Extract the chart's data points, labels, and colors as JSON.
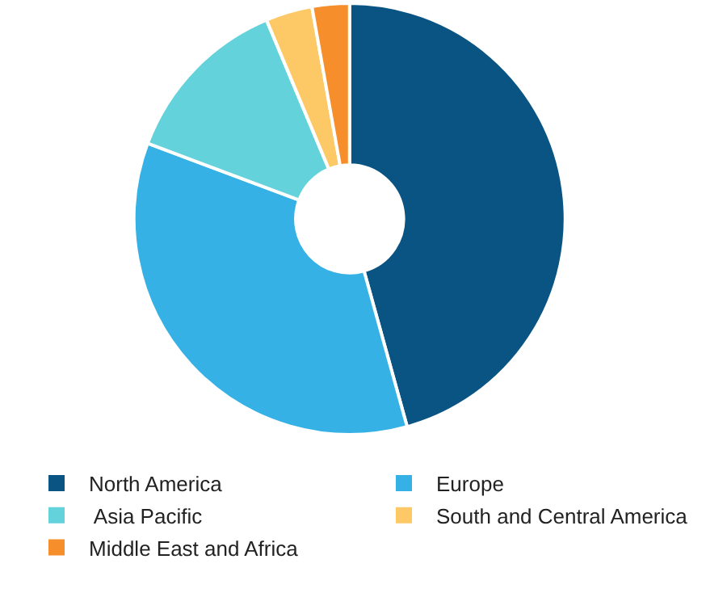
{
  "chart_data": {
    "type": "donut",
    "categories": [
      "North America",
      "Europe",
      " Asia Pacific",
      "South and Central America",
      "Middle East and Africa"
    ],
    "values": [
      45.7,
      35.0,
      13.0,
      3.5,
      2.8
    ],
    "colors": [
      "#0a5483",
      "#36b1e5",
      "#64d2db",
      "#fdc866",
      "#f68f2b"
    ],
    "legend": "bottom"
  }
}
